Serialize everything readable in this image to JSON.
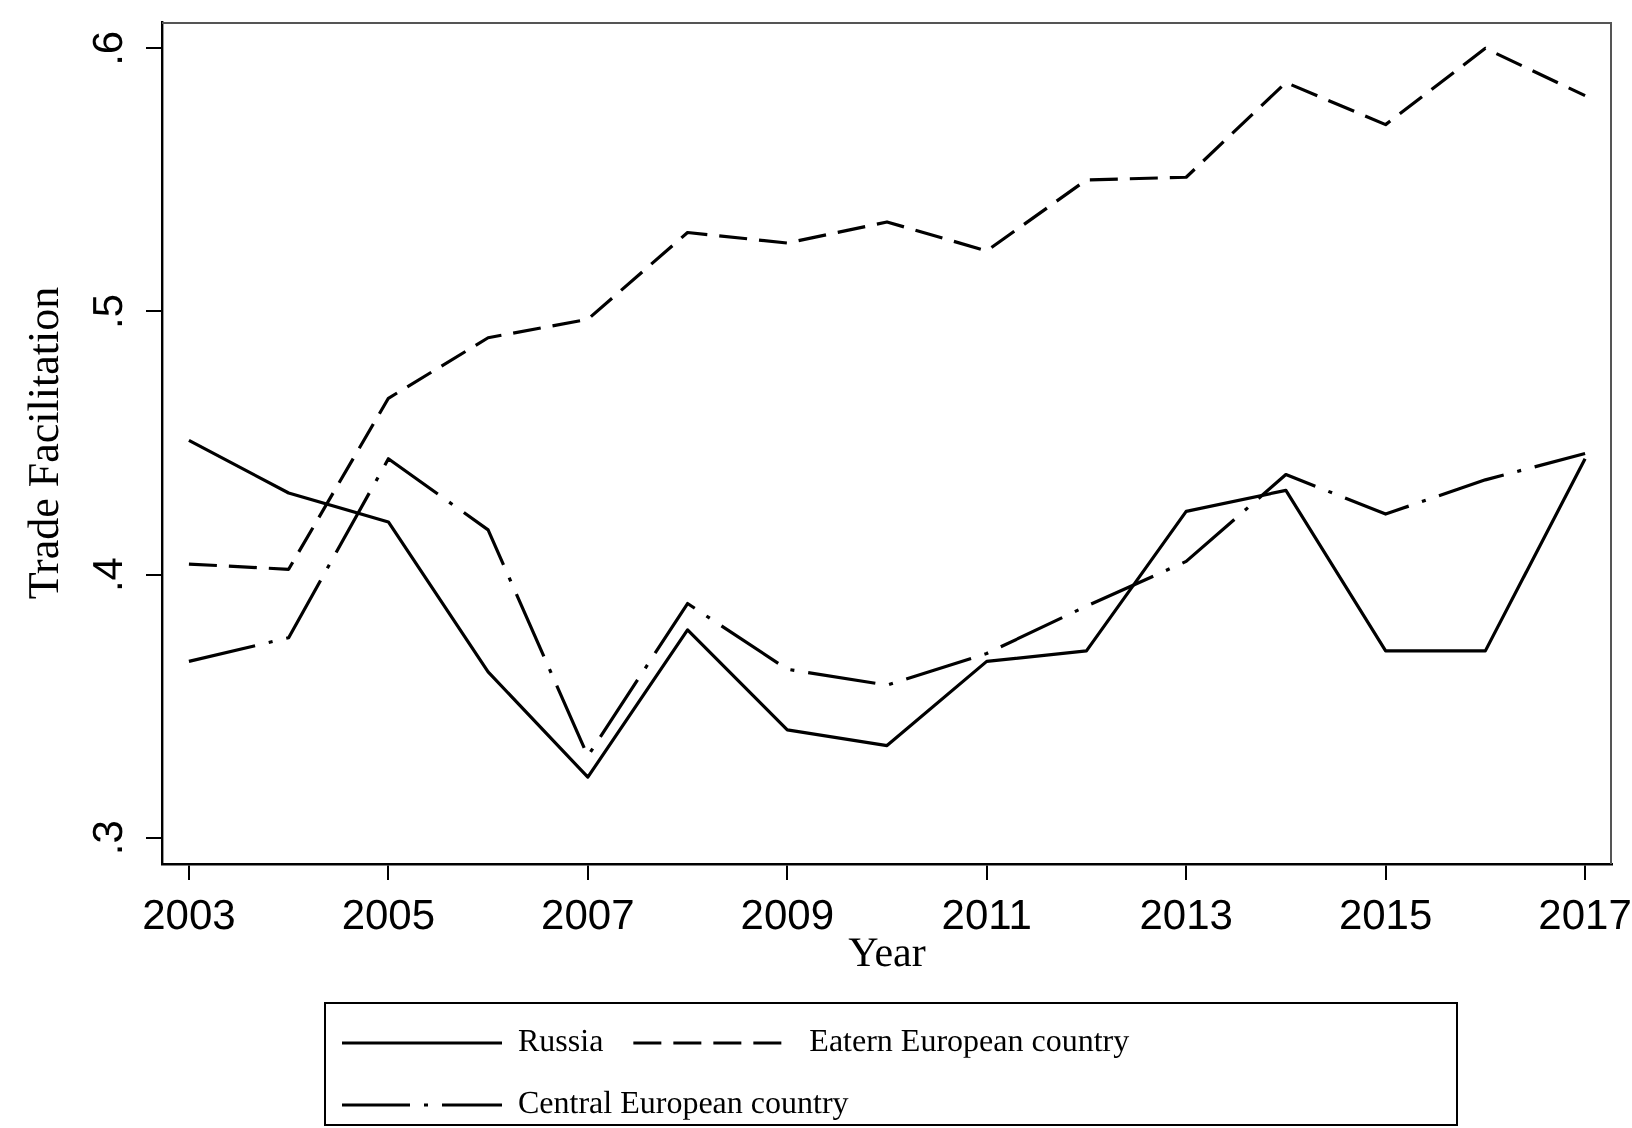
{
  "chart_data": {
    "type": "line",
    "xlabel": "Year",
    "ylabel": "Trade Facilitation",
    "x": [
      2003,
      2004,
      2005,
      2006,
      2007,
      2008,
      2009,
      2010,
      2011,
      2012,
      2013,
      2014,
      2015,
      2016,
      2017
    ],
    "series": [
      {
        "name": "Russia",
        "color": "#000000",
        "line_style": "solid",
        "values": [
          0.451,
          0.431,
          0.42,
          0.363,
          0.323,
          0.379,
          0.341,
          0.335,
          0.367,
          0.371,
          0.424,
          0.432,
          0.371,
          0.371,
          0.444
        ]
      },
      {
        "name": "Eatern European country",
        "color": "#000000",
        "line_style": "dashed",
        "values": [
          0.404,
          0.402,
          0.467,
          0.49,
          0.497,
          0.53,
          0.526,
          0.534,
          0.523,
          0.55,
          0.551,
          0.587,
          0.571,
          0.6,
          0.582
        ]
      },
      {
        "name": "Central European country",
        "color": "#000000",
        "line_style": "dashdot",
        "values": [
          0.367,
          0.376,
          0.444,
          0.417,
          0.331,
          0.389,
          0.364,
          0.358,
          0.37,
          0.388,
          0.405,
          0.438,
          0.423,
          0.436,
          0.446
        ]
      }
    ],
    "xlim": [
      2002.73,
      2017.27
    ],
    "ylim": [
      0.29,
      0.61
    ],
    "xticks": [
      2003,
      2005,
      2007,
      2009,
      2011,
      2013,
      2015,
      2017
    ],
    "yticks": [
      {
        "value": 0.3,
        "label": ".3"
      },
      {
        "value": 0.4,
        "label": ".4"
      },
      {
        "value": 0.5,
        "label": ".5"
      },
      {
        "value": 0.6,
        "label": ".6"
      }
    ],
    "grid": false,
    "legend": "bottom",
    "marker": "none"
  }
}
